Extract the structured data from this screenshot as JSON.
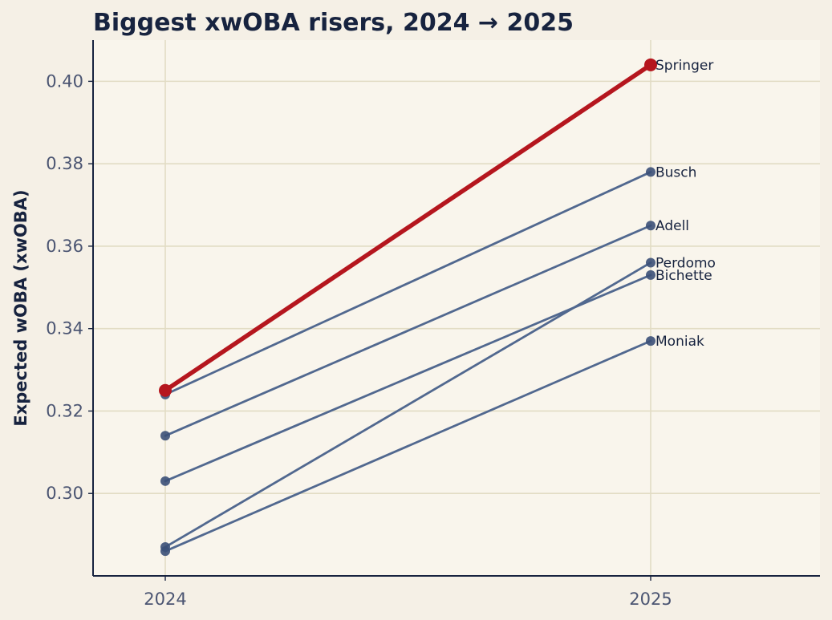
{
  "chart_data": {
    "type": "line",
    "title": "Biggest xwOBA risers, 2024 → 2025",
    "xlabel": "",
    "ylabel": "Expected wOBA (xwOBA)",
    "x": [
      "2024",
      "2025"
    ],
    "ylim": [
      0.28,
      0.41
    ],
    "yticks": [
      "0.30",
      "0.32",
      "0.34",
      "0.36",
      "0.38",
      "0.40"
    ],
    "grid": true,
    "series": [
      {
        "name": "Springer",
        "values": [
          0.325,
          0.404
        ],
        "highlight": true
      },
      {
        "name": "Busch",
        "values": [
          0.324,
          0.378
        ]
      },
      {
        "name": "Adell",
        "values": [
          0.314,
          0.365
        ]
      },
      {
        "name": "Perdomo",
        "values": [
          0.287,
          0.356
        ]
      },
      {
        "name": "Bichette",
        "values": [
          0.303,
          0.353
        ]
      },
      {
        "name": "Moniak",
        "values": [
          0.286,
          0.337
        ]
      }
    ],
    "colors": {
      "highlight": "#b5161e",
      "other": "#51688f",
      "marker": "#3b5078",
      "title": "#17233f",
      "tick": "#4b5572",
      "grid": "#e2dcc4",
      "plot_bg": "#f9f5ec",
      "page_bg": "#f5f0e6",
      "axis": "#17233f"
    }
  }
}
